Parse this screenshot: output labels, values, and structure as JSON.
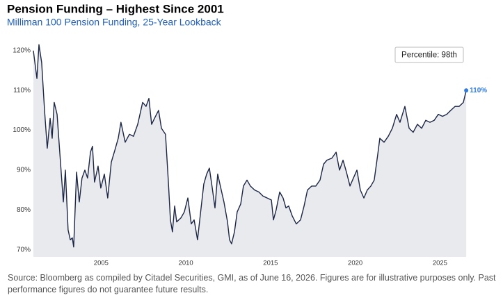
{
  "chart_data": {
    "type": "line",
    "title": "Pension Funding – Highest Since 2001",
    "subtitle": "Milliman 100 Pension Funding, 25-Year Lookback",
    "annotation": "Percentile: 98th",
    "source": "Source: Bloomberg as compiled by Citadel Securities, GMI, as of June 16, 2026. Figures are for illustrative purposes only. Past performance figures do not guarantee future results.",
    "color": "#1c2647",
    "fill_color": "#e9eaee",
    "end_color": "#2f7be0",
    "grid": false,
    "x": [
      2001.0,
      2001.12,
      2001.21,
      2001.33,
      2001.49,
      2001.66,
      2001.82,
      2001.99,
      2002.11,
      2002.23,
      2002.4,
      2002.6,
      2002.77,
      2002.89,
      2003.05,
      2003.18,
      2003.3,
      2003.38,
      2003.55,
      2003.71,
      2003.87,
      2004.04,
      2004.2,
      2004.37,
      2004.49,
      2004.61,
      2004.82,
      2004.98,
      2005.19,
      2005.39,
      2005.6,
      2005.81,
      2006.01,
      2006.17,
      2006.42,
      2006.67,
      2006.91,
      2007.16,
      2007.45,
      2007.65,
      2007.82,
      2007.98,
      2008.15,
      2008.39,
      2008.56,
      2008.8,
      2008.97,
      2009.09,
      2009.21,
      2009.34,
      2009.46,
      2009.71,
      2009.91,
      2010.12,
      2010.32,
      2010.49,
      2010.69,
      2010.9,
      2011.06,
      2011.23,
      2011.39,
      2011.56,
      2011.72,
      2011.88,
      2012.09,
      2012.25,
      2012.46,
      2012.58,
      2012.7,
      2012.87,
      2013.03,
      2013.24,
      2013.4,
      2013.61,
      2013.81,
      2014.06,
      2014.31,
      2014.55,
      2014.8,
      2015.05,
      2015.17,
      2015.33,
      2015.54,
      2015.74,
      2015.91,
      2016.07,
      2016.28,
      2016.52,
      2016.77,
      2016.98,
      2017.18,
      2017.43,
      2017.67,
      2017.92,
      2018.13,
      2018.33,
      2018.62,
      2018.87,
      2019.07,
      2019.28,
      2019.48,
      2019.69,
      2019.89,
      2020.1,
      2020.3,
      2020.51,
      2020.71,
      2020.92,
      2021.12,
      2021.33,
      2021.45,
      2021.7,
      2021.95,
      2022.19,
      2022.44,
      2022.64,
      2022.93,
      2023.18,
      2023.42,
      2023.67,
      2023.92,
      2024.16,
      2024.41,
      2024.66,
      2024.9,
      2025.15,
      2025.4,
      2025.64,
      2025.89,
      2026.13,
      2026.38,
      2026.55
    ],
    "values": [
      120,
      116,
      113,
      121.5,
      117,
      105,
      95.5,
      103,
      98,
      107,
      104,
      92,
      82,
      90,
      75,
      72.5,
      73,
      70.7,
      89.5,
      82,
      88,
      90,
      88,
      94.5,
      96,
      87,
      91,
      85.5,
      89,
      83,
      92,
      95,
      98,
      102,
      97,
      99,
      98.5,
      101.5,
      107,
      106,
      108,
      101.5,
      103,
      105,
      100.5,
      99,
      87,
      77.5,
      74.5,
      81,
      77,
      78,
      79.5,
      83,
      76.5,
      77.5,
      72.5,
      80.5,
      86.5,
      89,
      90.5,
      85.5,
      80.5,
      89,
      85,
      82,
      77,
      72.5,
      71.5,
      74.5,
      79.5,
      81.5,
      86,
      87.5,
      86,
      85,
      84.5,
      83.5,
      83,
      82.5,
      77.5,
      80,
      84.5,
      83,
      80.5,
      81,
      78.5,
      76.5,
      77.5,
      81,
      85,
      86,
      86,
      87.5,
      91.5,
      92.5,
      93,
      94.5,
      90,
      92.5,
      89.5,
      86,
      88,
      90,
      85,
      83,
      85,
      86,
      87.5,
      94,
      98,
      97,
      98.5,
      100.5,
      104,
      102,
      106,
      100.5,
      99.5,
      101.5,
      100.5,
      102.5,
      102,
      102.5,
      104,
      103.5,
      104,
      105,
      106,
      106,
      107,
      110
    ],
    "value_labels": [
      null,
      null,
      null,
      null,
      null,
      null,
      null,
      null,
      null,
      null,
      null,
      null,
      null,
      null,
      null,
      null,
      null,
      null,
      null,
      null,
      null,
      null,
      null,
      null,
      null,
      null,
      null,
      null,
      null,
      null,
      null,
      null,
      null,
      null,
      null,
      null,
      null,
      null,
      null,
      null,
      null,
      null,
      null,
      null,
      null,
      null,
      null,
      null,
      null,
      null,
      null,
      null,
      null,
      null,
      null,
      null,
      null,
      null,
      null,
      null,
      null,
      null,
      null,
      null,
      null,
      null,
      null,
      null,
      null,
      null,
      null,
      null,
      null,
      null,
      null,
      null,
      null,
      null,
      null,
      null,
      null,
      null,
      null,
      null,
      null,
      null,
      null,
      null,
      null,
      null,
      null,
      null,
      null,
      null,
      null,
      null,
      null,
      null,
      null,
      null,
      null,
      null,
      null,
      null,
      null,
      null,
      null,
      null,
      null,
      null,
      null,
      null,
      null,
      null,
      null,
      null,
      null,
      null,
      null,
      null,
      null,
      null,
      null,
      null,
      null,
      null,
      null,
      null,
      null,
      null,
      null,
      "110%"
    ],
    "xlim": [
      2000.92,
      2026.75
    ],
    "xticks": [
      2005,
      2010,
      2015,
      2020,
      2025
    ],
    "ylim": [
      68.2,
      121.9
    ],
    "yticks": [
      {
        "value": 70,
        "label": "70%"
      },
      {
        "value": 80,
        "label": "80%"
      },
      {
        "value": 90,
        "label": "90%"
      },
      {
        "value": 100,
        "label": "100%"
      },
      {
        "value": 110,
        "label": "110%"
      },
      {
        "value": 120,
        "label": "120%"
      }
    ]
  }
}
